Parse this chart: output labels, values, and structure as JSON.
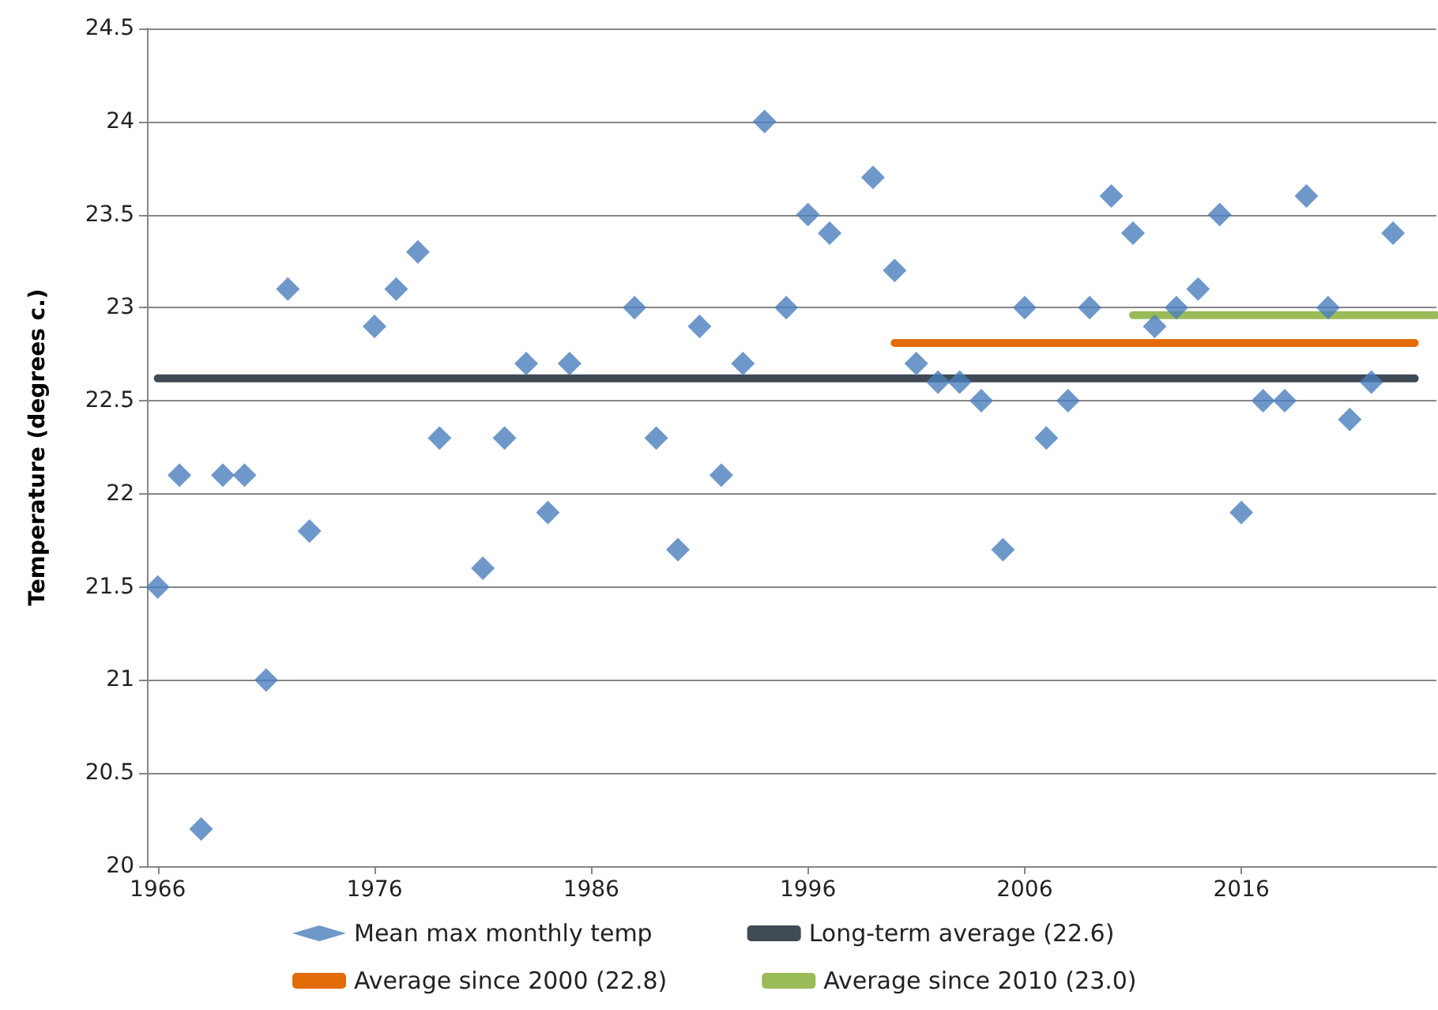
{
  "chart_data": {
    "type": "scatter",
    "ylabel": "Temperature (degrees c.)",
    "xlim": [
      1965.5,
      2025
    ],
    "xticks": [
      1966,
      1976,
      1986,
      1996,
      2006,
      2016
    ],
    "ylim": [
      20,
      24.5
    ],
    "yticks": [
      20,
      20.5,
      21,
      21.5,
      22,
      22.5,
      23,
      23.5,
      24,
      24.5
    ],
    "grid": "y",
    "legend": "bottom",
    "series": [
      {
        "name": "Mean max monthly temp",
        "marker": "diamond",
        "color": "#4a7ebb",
        "x": [
          1966,
          1967,
          1968,
          1969,
          1970,
          1971,
          1972,
          1973,
          1976,
          1977,
          1978,
          1979,
          1981,
          1982,
          1983,
          1984,
          1985,
          1988,
          1989,
          1990,
          1991,
          1992,
          1993,
          1994,
          1995,
          1996,
          1997,
          1999,
          2000,
          2001,
          2002,
          2003,
          2004,
          2005,
          2006,
          2007,
          2008,
          2009,
          2010,
          2011,
          2012,
          2013,
          2014,
          2015,
          2016,
          2017,
          2018,
          2019,
          2020,
          2021,
          2022,
          2023
        ],
        "values": [
          21.5,
          22.1,
          20.2,
          22.1,
          22.1,
          21.0,
          23.1,
          21.8,
          22.9,
          23.1,
          23.3,
          22.3,
          21.6,
          22.3,
          22.7,
          21.9,
          22.7,
          23.0,
          22.3,
          21.7,
          22.9,
          22.1,
          22.7,
          24.0,
          23.0,
          23.5,
          23.4,
          23.7,
          23.2,
          22.7,
          22.6,
          22.6,
          22.5,
          21.7,
          23.0,
          22.3,
          22.5,
          23.0,
          23.6,
          23.4,
          22.9,
          23.0,
          23.1,
          23.5,
          21.9,
          22.5,
          22.5,
          23.6,
          23.0,
          22.4,
          22.6,
          23.4
        ]
      },
      {
        "name": "Long-term average (22.6)",
        "type": "line",
        "marker": "none",
        "color": "#3f4a55",
        "x": [
          1966,
          2024
        ],
        "values": [
          22.62,
          22.62
        ]
      },
      {
        "name": "Average since 2000 (22.8)",
        "type": "line",
        "marker": "none",
        "color": "#e36c09",
        "x": [
          2000,
          2024
        ],
        "values": [
          22.81,
          22.81
        ]
      },
      {
        "name": "Average since 2010 (23.0)",
        "type": "line",
        "marker": "none",
        "color": "#9bbb59",
        "x": [
          2011,
          2025
        ],
        "values": [
          22.96,
          22.96
        ]
      }
    ]
  }
}
